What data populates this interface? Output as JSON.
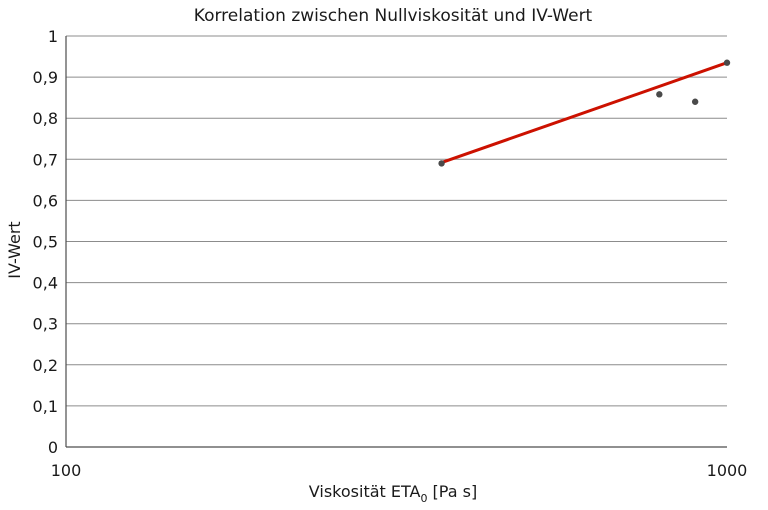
{
  "chart_data": {
    "type": "scatter",
    "title": "Korrelation zwischen Nullviskosität und IV-Wert",
    "xlabel_main": "Viskosität ETA",
    "xlabel_sub": "0",
    "xlabel_unit": " [Pa s]",
    "ylabel": "IV-Wert",
    "x_scale": "log",
    "xlim": [
      100,
      1000
    ],
    "ylim": [
      0,
      1
    ],
    "x_ticks": [
      "100",
      "1000"
    ],
    "x_tick_values": [
      100,
      1000
    ],
    "y_ticks": [
      "0",
      "0,1",
      "0,2",
      "0,3",
      "0,4",
      "0,5",
      "0,6",
      "0,7",
      "0,8",
      "0,9",
      "1"
    ],
    "y_tick_values": [
      0,
      0.1,
      0.2,
      0.3,
      0.4,
      0.5,
      0.6,
      0.7,
      0.8,
      0.9,
      1.0
    ],
    "grid": "horizontal",
    "points": [
      {
        "x": 370,
        "y": 0.69
      },
      {
        "x": 790,
        "y": 0.858
      },
      {
        "x": 895,
        "y": 0.84
      },
      {
        "x": 1000,
        "y": 0.935
      }
    ],
    "trendline": {
      "x": [
        370,
        1000
      ],
      "y": [
        0.692,
        0.935
      ]
    },
    "colors": {
      "points": "#4a4a4a",
      "trendline": "#cc1100",
      "grid": "#8c8c8c"
    }
  }
}
